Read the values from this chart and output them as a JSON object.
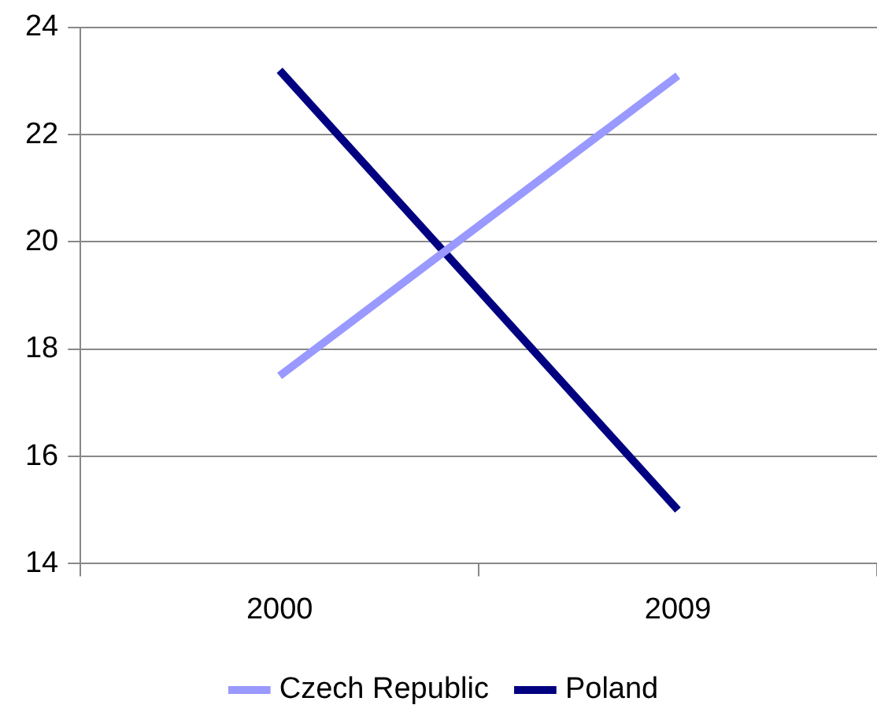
{
  "chart_data": {
    "type": "line",
    "categories": [
      "2000",
      "2009"
    ],
    "series": [
      {
        "name": "Czech Republic",
        "color": "#9999ff",
        "values": [
          17.5,
          23.1
        ]
      },
      {
        "name": "Poland",
        "color": "#000080",
        "values": [
          23.2,
          15.0
        ]
      }
    ],
    "ylim": [
      14,
      24
    ],
    "yticks": [
      14,
      16,
      18,
      20,
      22,
      24
    ],
    "grid": "y",
    "legend": "bottom",
    "marker": "none",
    "line_style": "solid"
  }
}
